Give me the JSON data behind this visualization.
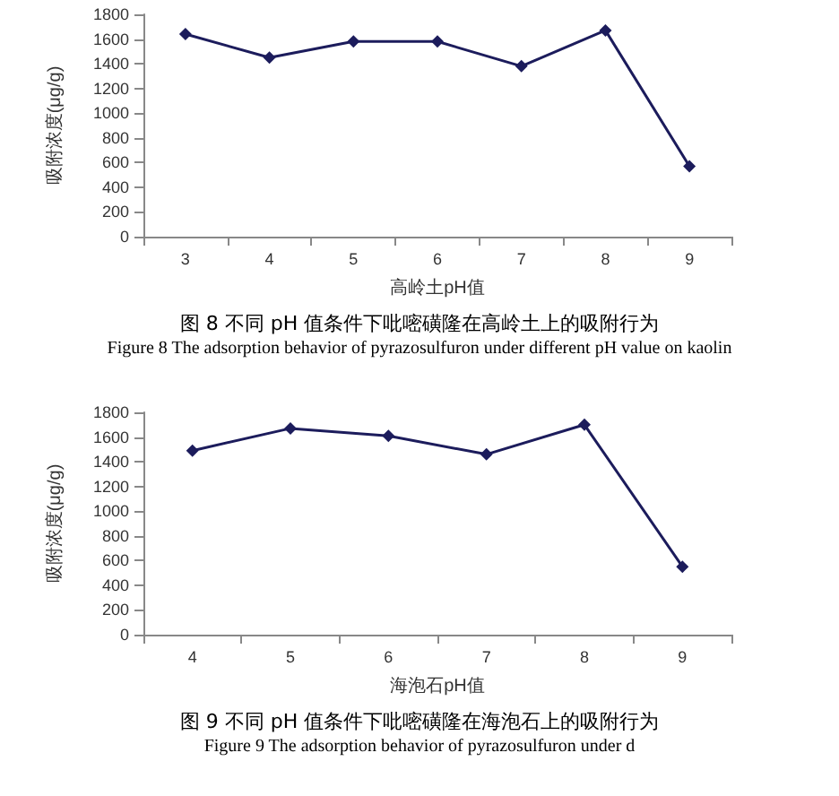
{
  "chart_data": [
    {
      "type": "line",
      "title": "图 8  不同 pH 值条件下吡嘧磺隆在高岭土上的吸附行为",
      "xlabel": "高岭土pH值",
      "ylabel": "吸附浓度(μg/g)",
      "categories": [
        "3",
        "4",
        "5",
        "6",
        "7",
        "8",
        "9"
      ],
      "series": [
        {
          "color": "#1c1c5c",
          "values": [
            1640,
            1450,
            1580,
            1580,
            1380,
            1670,
            570
          ]
        }
      ],
      "ylim": [
        0,
        1800
      ],
      "yticks": [
        0,
        200,
        400,
        600,
        800,
        1000,
        1200,
        1400,
        1600,
        1800
      ],
      "grid": false,
      "marker": "diamond",
      "line_style": "solid",
      "annotations": [
        "Figure 8 The adsorption behavior of pyrazosulfuron under different pH value on kaolin"
      ]
    },
    {
      "type": "line",
      "title": "图 9  不同 pH 值条件下吡嘧磺隆在海泡石上的吸附行为",
      "xlabel": "海泡石pH值",
      "ylabel": "吸附浓度(μg/g)",
      "categories": [
        "4",
        "5",
        "6",
        "7",
        "8",
        "9"
      ],
      "series": [
        {
          "color": "#1c1c5c",
          "values": [
            1490,
            1670,
            1610,
            1460,
            1700,
            550
          ]
        }
      ],
      "ylim": [
        0,
        1800
      ],
      "yticks": [
        0,
        200,
        400,
        600,
        800,
        1000,
        1200,
        1400,
        1600,
        1800
      ],
      "grid": false,
      "marker": "diamond",
      "line_style": "solid",
      "annotations": [
        "Figure 9 The adsorption behavior of pyrazosulfuron under d"
      ]
    }
  ]
}
